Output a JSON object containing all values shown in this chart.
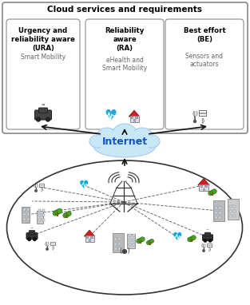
{
  "title": "Cloud services and requirements",
  "box1_title": "Urgency and\nreliability aware\n(URA)",
  "box1_sub": "Smart Mobility",
  "box2_title": "Reliability\naware\n(RA)",
  "box2_sub": "eHealth and\nSmart Mobility",
  "box3_title": "Best effort\n(BE)",
  "box3_sub": "Sensors and\nactuators",
  "internet_label": "Internet",
  "bg_color": "#ffffff",
  "box_edge_color": "#999999",
  "outer_box_color": "#888888",
  "cloud_blue": "#c8e8f8",
  "cloud_edge": "#aaccee",
  "arrow_color": "#111111",
  "dashed_color": "#555555",
  "ellipse_color": "#333333",
  "internet_color": "#1155cc"
}
